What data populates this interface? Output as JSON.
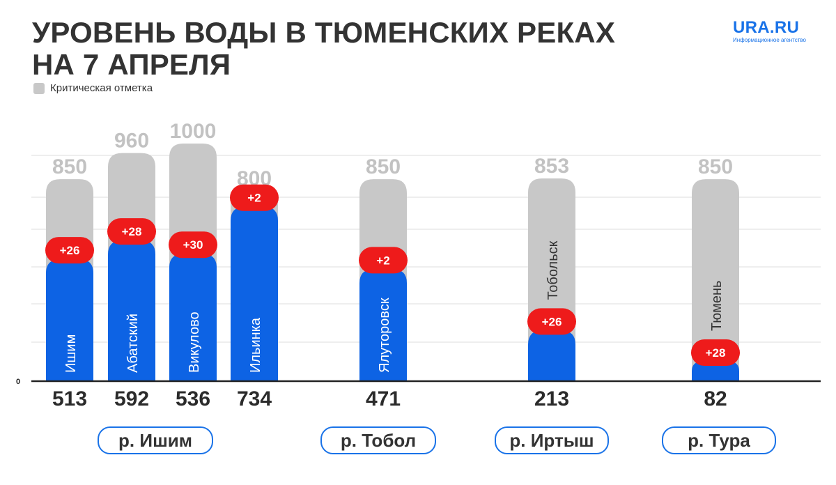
{
  "title_line1": "УРОВЕНЬ ВОДЫ В ТЮМЕНСКИХ РЕКАХ",
  "title_line2": "НА 7 АПРЕЛЯ",
  "logo": {
    "name": "URA.RU",
    "tagline": "Информационное агентство"
  },
  "legend": {
    "label": "Критическая отметка",
    "color": "#c8c8c8"
  },
  "colors": {
    "level": "#0d63e4",
    "critical": "#c8c8c8",
    "change": "#ee1b1b",
    "accent": "#1a73e8"
  },
  "chart_data": {
    "type": "bar",
    "title": "УРОВЕНЬ ВОДЫ В ТЮМЕНСКИХ РЕКАХ НА 7 АПРЕЛЯ",
    "ylim": [
      0,
      1000
    ],
    "y_tick_label": "0",
    "grid": true,
    "legend_position": "top-left",
    "categories": [
      "Ишим",
      "Абатский",
      "Викулово",
      "Ильинка",
      "Ялуторовск",
      "Тобольск",
      "Тюмень"
    ],
    "series": [
      {
        "name": "",
        "values": [
          513,
          592,
          536,
          734,
          471,
          213,
          82
        ]
      },
      {
        "name": "Критическая отметка",
        "values": [
          850,
          960,
          1000,
          800,
          850,
          853,
          850
        ]
      }
    ],
    "change_labels": [
      "+26",
      "+28",
      "+30",
      "+2",
      "+2",
      "+26",
      "+28"
    ],
    "groups": [
      {
        "label": "р. Ишим",
        "stations": [
          0,
          1,
          2,
          3
        ]
      },
      {
        "label": "р. Тобол",
        "stations": [
          4
        ]
      },
      {
        "label": "р. Иртыш",
        "stations": [
          5
        ]
      },
      {
        "label": "р. Тура",
        "stations": [
          6
        ]
      }
    ]
  }
}
